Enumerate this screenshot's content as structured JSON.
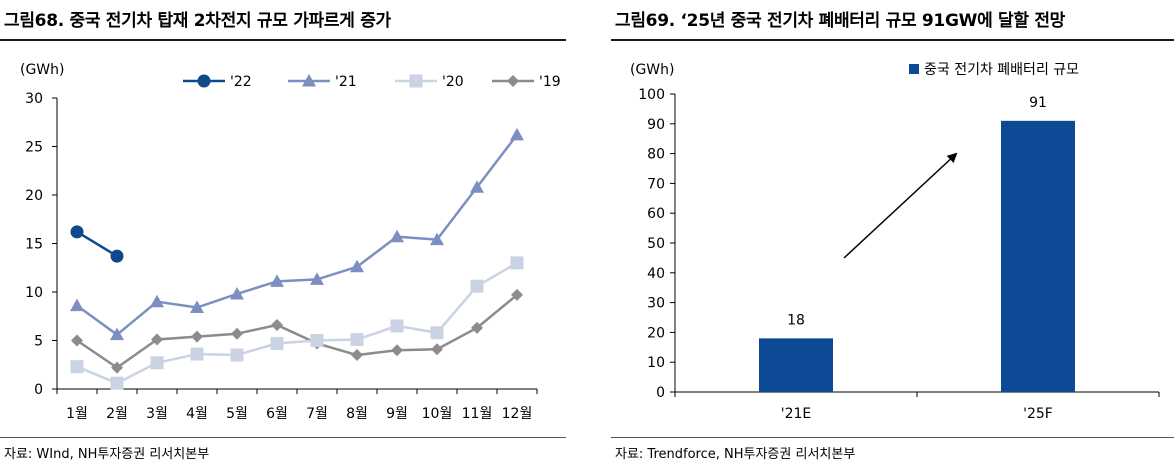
{
  "left": {
    "title": "그림68. 중국 전기차 탑재 2차전지 규모 가파르게 증가",
    "source": "자료: WInd, NH투자증권 리서치본부",
    "chart_data": {
      "type": "line",
      "ylabel": "(GWh)",
      "ylim": [
        0,
        30
      ],
      "yticks": [
        0,
        5,
        10,
        15,
        20,
        25,
        30
      ],
      "categories": [
        "1월",
        "2월",
        "3월",
        "4월",
        "5월",
        "6월",
        "7월",
        "8월",
        "9월",
        "10월",
        "11월",
        "12월"
      ],
      "legend_position": "top",
      "series": [
        {
          "name": "'22",
          "color": "#0d4a8c",
          "marker": "circle",
          "values": [
            16.2,
            13.7,
            null,
            null,
            null,
            null,
            null,
            null,
            null,
            null,
            null,
            null
          ]
        },
        {
          "name": "'21",
          "color": "#7b8fc0",
          "marker": "triangle",
          "values": [
            8.6,
            5.6,
            9.0,
            8.4,
            9.8,
            11.1,
            11.3,
            12.6,
            15.7,
            15.4,
            20.8,
            26.2
          ]
        },
        {
          "name": "'20",
          "color": "#c9d3e3",
          "marker": "square",
          "values": [
            2.3,
            0.6,
            2.7,
            3.6,
            3.5,
            4.7,
            5.0,
            5.1,
            6.5,
            5.8,
            10.6,
            13.0
          ]
        },
        {
          "name": "'19",
          "color": "#8c8c8c",
          "marker": "diamond",
          "values": [
            5.0,
            2.2,
            5.1,
            5.4,
            5.7,
            6.6,
            4.7,
            3.5,
            4.0,
            4.1,
            6.3,
            9.7
          ]
        }
      ]
    }
  },
  "right": {
    "title": "그림69. ‘25년 중국 전기차 폐배터리 규모 91GW에 달할 전망",
    "source": "자료: Trendforce, NH투자증권 리서치본부",
    "chart_data": {
      "type": "bar",
      "ylabel": "(GWh)",
      "ylim": [
        0,
        100
      ],
      "yticks": [
        0,
        10,
        20,
        30,
        40,
        50,
        60,
        70,
        80,
        90,
        100
      ],
      "categories": [
        "'21E",
        "'25F"
      ],
      "legend_position": "top-right",
      "series": [
        {
          "name": "중국 전기차 폐배터리 규모",
          "color": "#0d4a96",
          "values": [
            18,
            91
          ]
        }
      ],
      "data_labels": [
        "18",
        "91"
      ],
      "annotation": "arrow-up-right"
    }
  }
}
